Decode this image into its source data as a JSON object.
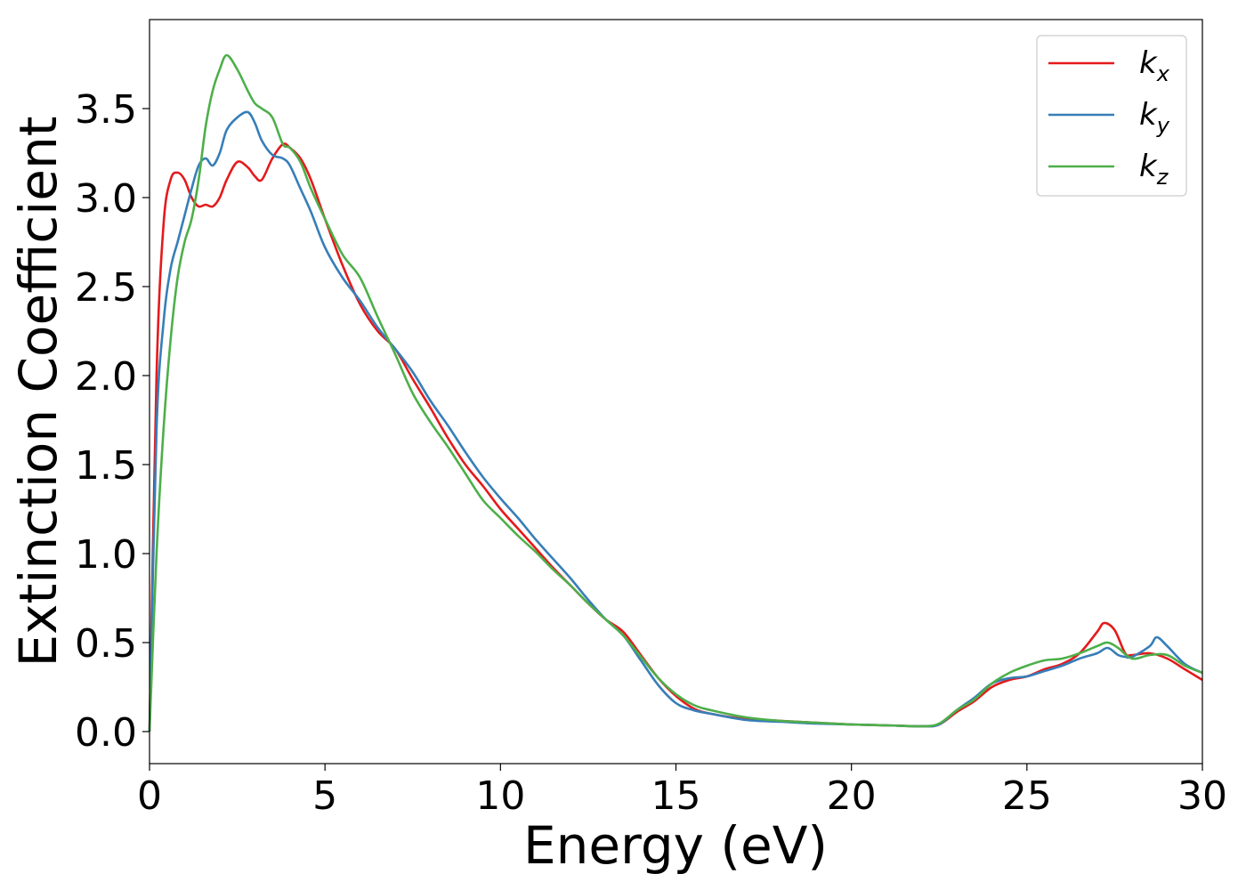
{
  "chart_data": {
    "type": "line",
    "title": "",
    "xlabel": "Energy (eV)",
    "ylabel": "Extinction Coefficient",
    "xlim": [
      0,
      30
    ],
    "ylim": [
      -0.18,
      4.0
    ],
    "xticks": [
      0,
      5,
      10,
      15,
      20,
      25,
      30
    ],
    "xtick_labels": [
      "0",
      "5",
      "10",
      "15",
      "20",
      "25",
      "30"
    ],
    "yticks": [
      0.0,
      0.5,
      1.0,
      1.5,
      2.0,
      2.5,
      3.0,
      3.5
    ],
    "ytick_labels": [
      "0.0",
      "0.5",
      "1.0",
      "1.5",
      "2.0",
      "2.5",
      "3.0",
      "3.5"
    ],
    "grid": false,
    "legend_position": "top-right",
    "series": [
      {
        "name": "k_x",
        "label_base": "k",
        "label_sub": "x",
        "color": "#e41a1c",
        "x": [
          0,
          0.2,
          0.4,
          0.6,
          0.8,
          1.0,
          1.2,
          1.4,
          1.6,
          1.8,
          2.0,
          2.2,
          2.5,
          2.8,
          3.0,
          3.2,
          3.5,
          3.8,
          4.0,
          4.3,
          4.6,
          5.0,
          5.5,
          6.0,
          6.5,
          7.0,
          7.5,
          8.0,
          8.5,
          9.0,
          9.5,
          10.0,
          10.5,
          11.0,
          11.5,
          12.0,
          12.5,
          13.0,
          13.5,
          14.0,
          14.5,
          15.0,
          15.5,
          16.0,
          17.0,
          18.0,
          19.0,
          20.0,
          21.0,
          22.0,
          22.5,
          23.0,
          23.5,
          24.0,
          24.5,
          25.0,
          25.5,
          26.0,
          26.5,
          27.0,
          27.2,
          27.5,
          27.8,
          28.0,
          28.5,
          29.0,
          29.5,
          30.0
        ],
        "y": [
          0.0,
          2.0,
          2.85,
          3.1,
          3.14,
          3.1,
          3.0,
          2.95,
          2.96,
          2.95,
          3.0,
          3.1,
          3.2,
          3.17,
          3.12,
          3.1,
          3.22,
          3.3,
          3.28,
          3.22,
          3.1,
          2.88,
          2.62,
          2.4,
          2.25,
          2.15,
          1.98,
          1.82,
          1.65,
          1.5,
          1.38,
          1.25,
          1.14,
          1.03,
          0.92,
          0.82,
          0.72,
          0.63,
          0.56,
          0.43,
          0.3,
          0.2,
          0.13,
          0.1,
          0.07,
          0.06,
          0.05,
          0.04,
          0.035,
          0.03,
          0.04,
          0.11,
          0.17,
          0.25,
          0.29,
          0.31,
          0.35,
          0.38,
          0.44,
          0.56,
          0.61,
          0.57,
          0.44,
          0.43,
          0.44,
          0.41,
          0.35,
          0.29
        ]
      },
      {
        "name": "k_y",
        "label_base": "k",
        "label_sub": "y",
        "color": "#377eb8",
        "x": [
          0,
          0.2,
          0.4,
          0.6,
          0.8,
          1.0,
          1.2,
          1.4,
          1.6,
          1.8,
          2.0,
          2.2,
          2.5,
          2.8,
          3.0,
          3.2,
          3.5,
          3.8,
          4.0,
          4.3,
          4.6,
          5.0,
          5.5,
          6.0,
          6.5,
          7.0,
          7.5,
          8.0,
          8.5,
          9.0,
          9.5,
          10.0,
          10.5,
          11.0,
          11.5,
          12.0,
          12.5,
          13.0,
          13.5,
          14.0,
          14.5,
          15.0,
          15.5,
          16.0,
          17.0,
          18.0,
          19.0,
          20.0,
          21.0,
          22.0,
          22.5,
          23.0,
          23.5,
          24.0,
          24.5,
          25.0,
          25.5,
          26.0,
          26.5,
          27.0,
          27.3,
          27.6,
          27.8,
          28.0,
          28.5,
          28.7,
          29.0,
          29.5,
          30.0
        ],
        "y": [
          0.0,
          1.7,
          2.3,
          2.6,
          2.75,
          2.9,
          3.05,
          3.18,
          3.22,
          3.18,
          3.25,
          3.38,
          3.45,
          3.48,
          3.42,
          3.32,
          3.24,
          3.22,
          3.18,
          3.05,
          2.92,
          2.72,
          2.55,
          2.42,
          2.27,
          2.15,
          2.02,
          1.86,
          1.72,
          1.57,
          1.43,
          1.31,
          1.2,
          1.08,
          0.97,
          0.86,
          0.74,
          0.63,
          0.54,
          0.4,
          0.26,
          0.16,
          0.12,
          0.1,
          0.065,
          0.055,
          0.045,
          0.04,
          0.035,
          0.03,
          0.04,
          0.12,
          0.19,
          0.27,
          0.3,
          0.31,
          0.34,
          0.37,
          0.41,
          0.44,
          0.47,
          0.43,
          0.42,
          0.42,
          0.48,
          0.53,
          0.48,
          0.38,
          0.33
        ]
      },
      {
        "name": "k_z",
        "label_base": "k",
        "label_sub": "z",
        "color": "#4daf4a",
        "x": [
          0,
          0.2,
          0.4,
          0.6,
          0.8,
          1.0,
          1.2,
          1.4,
          1.6,
          1.8,
          2.0,
          2.2,
          2.5,
          2.8,
          3.0,
          3.2,
          3.5,
          3.8,
          4.0,
          4.3,
          4.6,
          5.0,
          5.5,
          6.0,
          6.5,
          7.0,
          7.5,
          8.0,
          8.5,
          9.0,
          9.5,
          10.0,
          10.5,
          11.0,
          11.5,
          12.0,
          12.5,
          13.0,
          13.5,
          14.0,
          14.5,
          15.0,
          15.5,
          16.0,
          17.0,
          18.0,
          19.0,
          20.0,
          21.0,
          22.0,
          22.5,
          23.0,
          23.5,
          24.0,
          24.5,
          25.0,
          25.5,
          26.0,
          26.5,
          27.0,
          27.3,
          27.6,
          28.0,
          28.5,
          29.0,
          29.5,
          30.0
        ],
        "y": [
          0.0,
          1.0,
          1.7,
          2.2,
          2.55,
          2.75,
          2.88,
          3.1,
          3.4,
          3.6,
          3.72,
          3.8,
          3.72,
          3.6,
          3.53,
          3.5,
          3.45,
          3.3,
          3.28,
          3.2,
          3.05,
          2.88,
          2.68,
          2.55,
          2.33,
          2.12,
          1.9,
          1.74,
          1.6,
          1.45,
          1.3,
          1.2,
          1.1,
          1.01,
          0.91,
          0.82,
          0.72,
          0.63,
          0.54,
          0.42,
          0.3,
          0.21,
          0.15,
          0.12,
          0.08,
          0.06,
          0.05,
          0.04,
          0.035,
          0.03,
          0.045,
          0.12,
          0.18,
          0.27,
          0.33,
          0.37,
          0.4,
          0.41,
          0.44,
          0.48,
          0.5,
          0.47,
          0.41,
          0.43,
          0.43,
          0.37,
          0.33
        ]
      }
    ]
  }
}
